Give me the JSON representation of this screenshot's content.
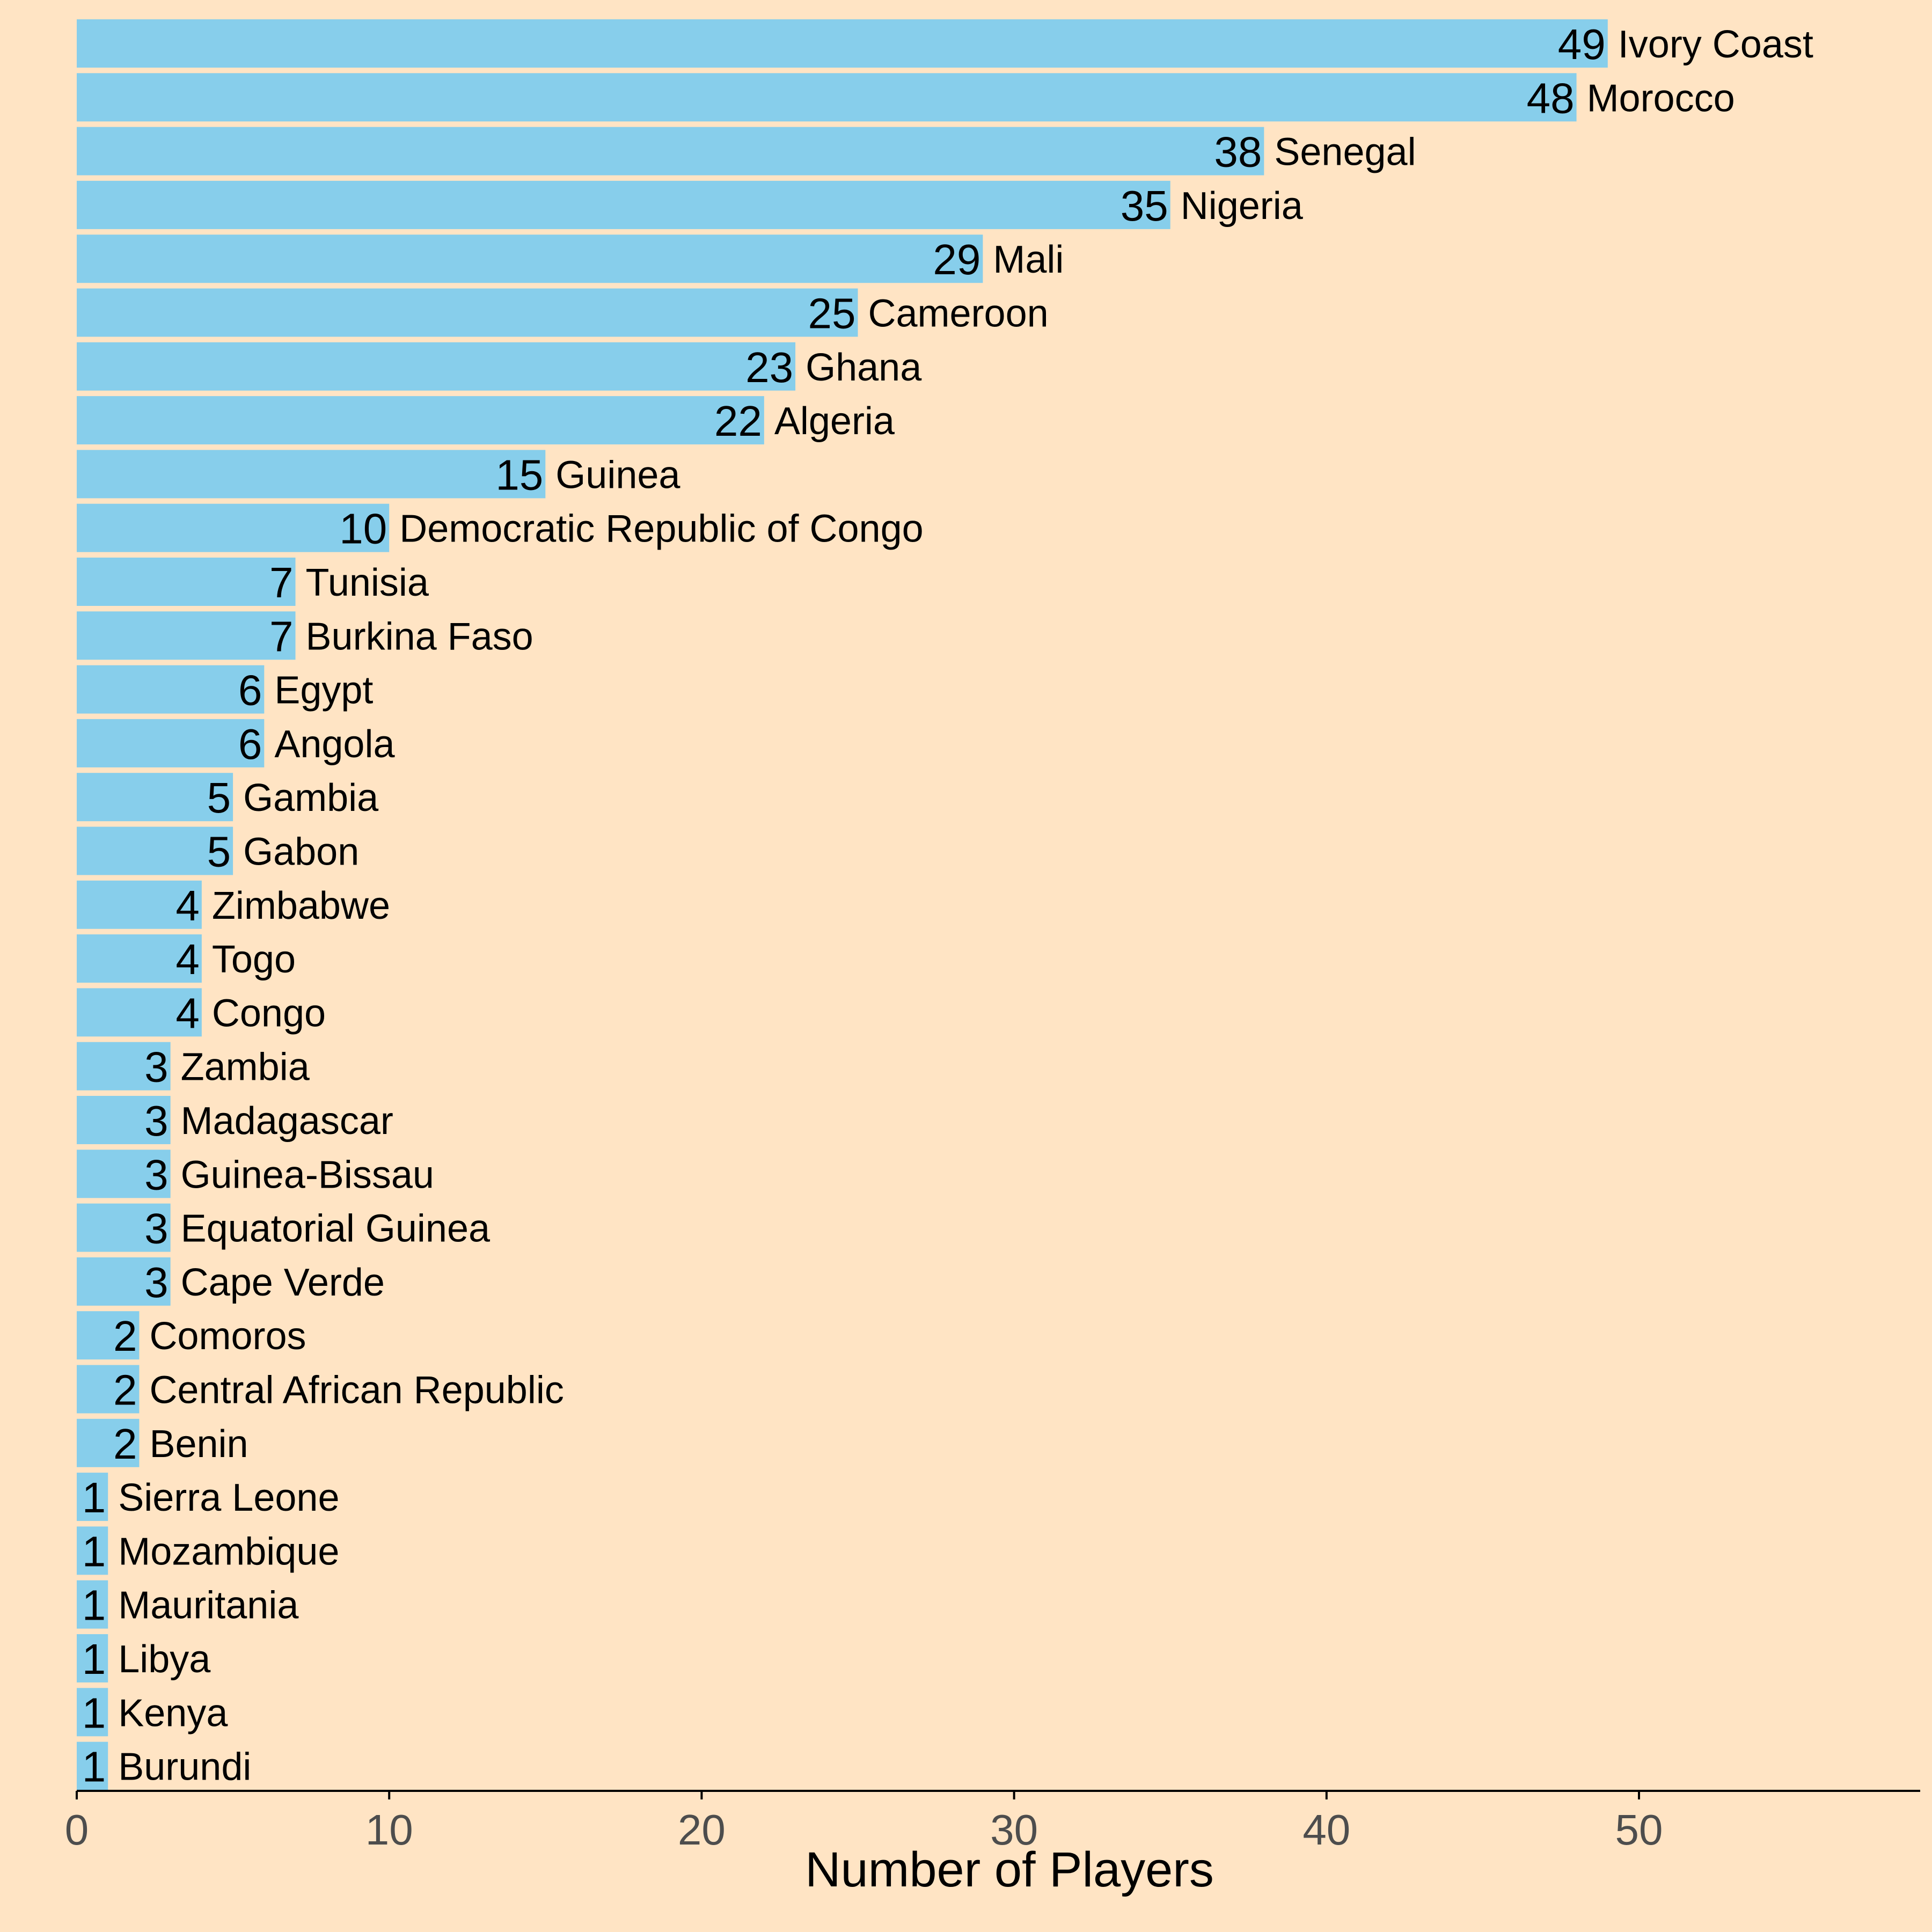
{
  "colors": {
    "background": "#FFE4C4",
    "bar": "#87CEEB",
    "axis": "#000000",
    "tick_text": "#4d4d4d"
  },
  "chart_data": {
    "type": "bar",
    "orientation": "horizontal",
    "title": "",
    "xlabel": "Number of Players",
    "ylabel": "",
    "xlim": [
      0,
      59
    ],
    "xticks": [
      0,
      10,
      20,
      30,
      40,
      50
    ],
    "grid": false,
    "legend": "none",
    "categories": [
      "Ivory Coast",
      "Morocco",
      "Senegal",
      "Nigeria",
      "Mali",
      "Cameroon",
      "Ghana",
      "Algeria",
      "Guinea",
      "Democratic Republic of Congo",
      "Tunisia",
      "Burkina Faso",
      "Egypt",
      "Angola",
      "Gambia",
      "Gabon",
      "Zimbabwe",
      "Togo",
      "Congo",
      "Zambia",
      "Madagascar",
      "Guinea-Bissau",
      "Equatorial Guinea",
      "Cape Verde",
      "Comoros",
      "Central African Republic",
      "Benin",
      "Sierra Leone",
      "Mozambique",
      "Mauritania",
      "Libya",
      "Kenya",
      "Burundi"
    ],
    "values": [
      49,
      48,
      38,
      35,
      29,
      25,
      23,
      22,
      15,
      10,
      7,
      7,
      6,
      6,
      5,
      5,
      4,
      4,
      4,
      3,
      3,
      3,
      3,
      3,
      2,
      2,
      2,
      1,
      1,
      1,
      1,
      1,
      1
    ]
  }
}
